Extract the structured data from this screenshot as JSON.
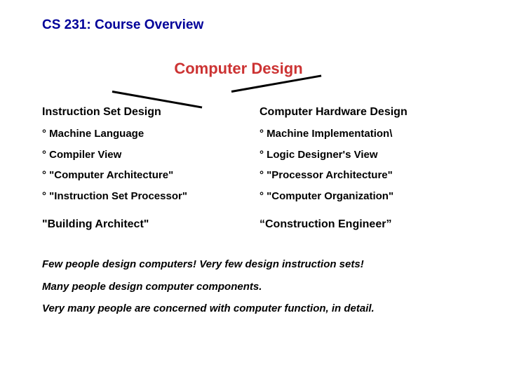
{
  "title": "CS 231: Course Overview",
  "mainHeading": "Computer Design",
  "leftColumn": {
    "heading": "Instruction Set Design",
    "items": [
      "° Machine Language",
      "° Compiler View",
      "° \"Computer Architecture\"",
      "° \"Instruction Set Processor\""
    ],
    "analogy": "\"Building Architect\""
  },
  "rightColumn": {
    "heading": "Computer Hardware Design",
    "items": [
      "° Machine Implementation\\",
      "° Logic Designer's View",
      "° \"Processor Architecture\"",
      "° \"Computer Organization\""
    ],
    "analogy": "“Construction Engineer”"
  },
  "statements": [
    "Few  people design computers!  Very few design instruction sets!",
    "Many people design computer components.",
    "Very many people are concerned with computer function, in detail."
  ],
  "colors": {
    "titleColor": "#000099",
    "headingColor": "#cc3333",
    "textColor": "#000000",
    "background": "#ffffff"
  }
}
